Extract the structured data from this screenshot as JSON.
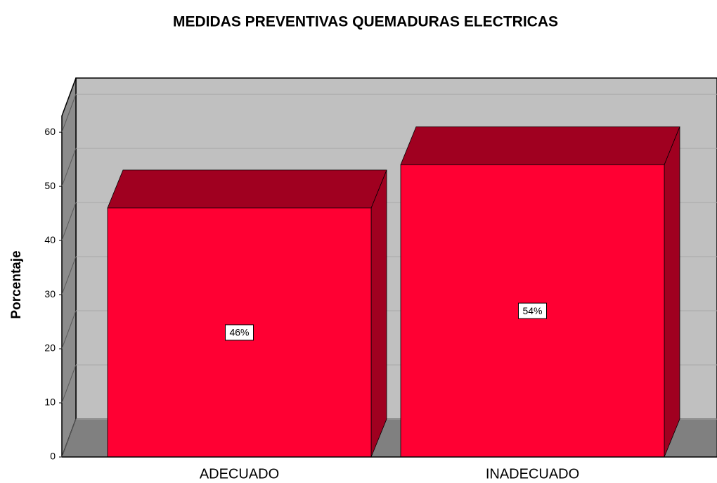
{
  "chart_data": {
    "type": "bar3d",
    "title": "MEDIDAS PREVENTIVAS QUEMADURAS ELECTRICAS",
    "y_label": "Porcentaje",
    "categories": [
      "ADECUADO",
      "INADECUADO"
    ],
    "values": [
      46,
      54
    ],
    "value_labels": [
      "46%",
      "54%"
    ],
    "color": "#ff0033",
    "ylim": [
      0,
      63
    ],
    "yticks": [
      0,
      10,
      20,
      30,
      40,
      50,
      60
    ],
    "grid": true
  }
}
